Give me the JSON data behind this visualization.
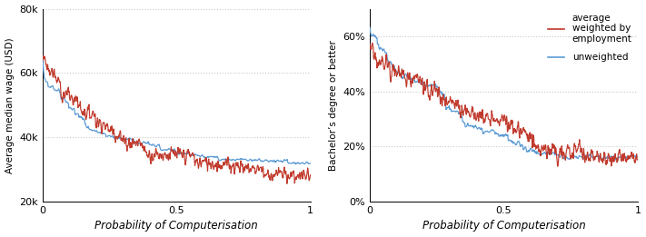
{
  "fig_width": 7.11,
  "fig_height": 2.61,
  "dpi": 100,
  "xlabel": "Probability of Computerisation",
  "left_ylabel": "Average median wage (USD)",
  "right_ylabel": "Bachelor’s degree or better",
  "legend_label_red": "average\nweighted by\nemployment",
  "legend_label_blue": "unweighted",
  "left_ylim": [
    20000,
    80000
  ],
  "left_yticks": [
    20000,
    40000,
    60000,
    80000
  ],
  "left_ytick_labels": [
    "20k",
    "40k",
    "60k",
    "80k"
  ],
  "right_ylim": [
    0,
    0.7
  ],
  "right_yticks": [
    0.0,
    0.2,
    0.4,
    0.6
  ],
  "right_ytick_labels": [
    "0%",
    "20%",
    "40%",
    "60%"
  ],
  "xlim": [
    0,
    1
  ],
  "xticks": [
    0,
    0.5,
    1
  ],
  "grid_color": "#c8c8c8",
  "background_color": "#ffffff",
  "red_color": "#c0392b",
  "blue_color": "#5b9bd5"
}
